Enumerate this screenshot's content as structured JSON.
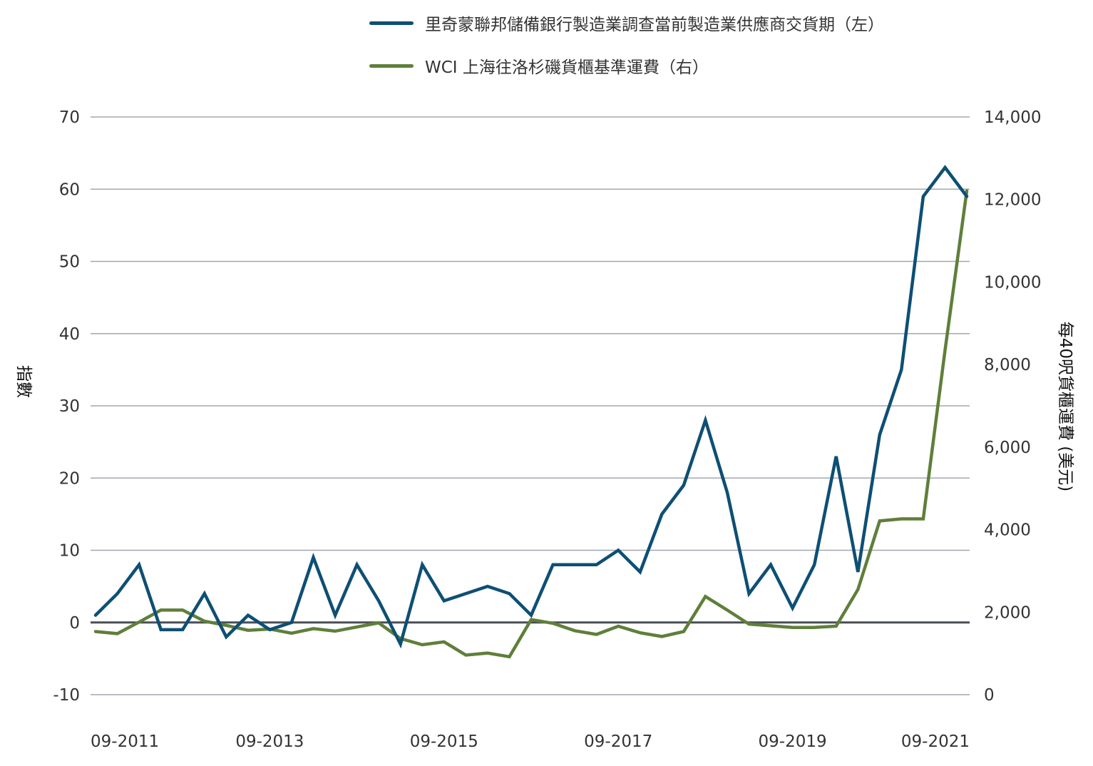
{
  "chart_data": {
    "type": "line",
    "title": "",
    "x": [
      "09-2011",
      "12-2011",
      "03-2012",
      "06-2012",
      "09-2012",
      "12-2012",
      "03-2013",
      "06-2013",
      "09-2013",
      "12-2013",
      "03-2014",
      "06-2014",
      "09-2014",
      "12-2014",
      "03-2015",
      "06-2015",
      "09-2015",
      "12-2015",
      "03-2016",
      "06-2016",
      "09-2016",
      "12-2016",
      "03-2017",
      "06-2017",
      "09-2017",
      "12-2017",
      "03-2018",
      "06-2018",
      "09-2018",
      "12-2018",
      "03-2019",
      "06-2019",
      "09-2019",
      "12-2019",
      "03-2020",
      "06-2020",
      "09-2020",
      "12-2020",
      "03-2021",
      "06-2021",
      "09-2021"
    ],
    "xtick_labels": [
      "09-2011",
      "09-2013",
      "09-2015",
      "09-2017",
      "09-2019",
      "09-2021"
    ],
    "series": [
      {
        "name": "里奇蒙聯邦儲備銀行製造業調查當前製造業供應商交貨期（左）",
        "axis": "left",
        "color": "#0e4f74",
        "values": [
          1,
          4,
          8,
          -1,
          -1,
          4,
          -2,
          1,
          -1,
          0,
          9,
          1,
          8,
          3,
          -3,
          8,
          3,
          4,
          5,
          4,
          1,
          8,
          8,
          8,
          10,
          7,
          15,
          19,
          28,
          18,
          4,
          8,
          2,
          8,
          23,
          7,
          26,
          35,
          59,
          63,
          59
        ]
      },
      {
        "name": "WCI 上海往洛杉磯貨櫃基準運費（右）",
        "axis": "right",
        "color": "#5f7f3a",
        "values": [
          1530,
          1480,
          1760,
          2050,
          2050,
          1780,
          1680,
          1560,
          1590,
          1490,
          1600,
          1540,
          1640,
          1740,
          1360,
          1210,
          1280,
          960,
          1010,
          920,
          1820,
          1730,
          1550,
          1460,
          1660,
          1500,
          1410,
          1530,
          2380,
          2050,
          1710,
          1670,
          1630,
          1630,
          1660,
          2550,
          4210,
          4260,
          4260,
          8350,
          12210
        ]
      }
    ],
    "y_left": {
      "label": "指數",
      "ylim": [
        -10,
        70
      ],
      "ticks": [
        "-10",
        "0",
        "10",
        "20",
        "30",
        "40",
        "50",
        "60",
        "70"
      ]
    },
    "y_right": {
      "label": "每40呎貨櫃運費 (美元)",
      "ylim": [
        0,
        14000
      ],
      "ticks": [
        "0",
        "2,000",
        "4,000",
        "6,000",
        "8,000",
        "10,000",
        "12,000",
        "14,000"
      ]
    },
    "grid": "horizontal",
    "zero_line": true,
    "legend_position": "top"
  }
}
